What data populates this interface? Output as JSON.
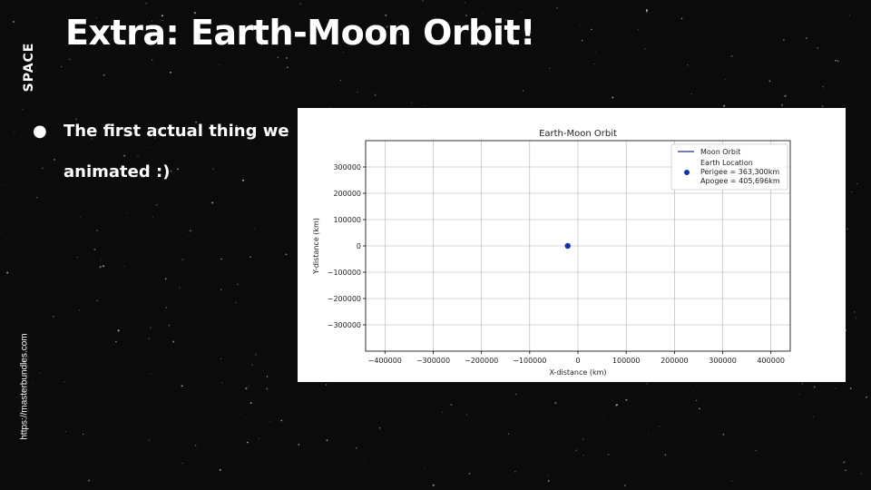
{
  "slide": {
    "title": "Extra: Earth-Moon Orbit!",
    "section_label": "SPACE",
    "source_url": "https://masterbundles.com",
    "bullets": [
      {
        "marker": "●",
        "text": "The first actual thing we animated :)"
      }
    ]
  },
  "chart_data": {
    "type": "scatter",
    "title": "Earth-Moon Orbit",
    "xlabel": "X-distance (km)",
    "ylabel": "Y-distance (km)",
    "xlim": [
      -440000,
      440000
    ],
    "ylim": [
      -400000,
      400000
    ],
    "xticks": [
      -400000,
      -300000,
      -200000,
      -100000,
      0,
      100000,
      200000,
      300000,
      400000
    ],
    "yticks": [
      -300000,
      -200000,
      -100000,
      0,
      100000,
      200000,
      300000
    ],
    "grid": true,
    "legend_position": "top-right",
    "series": [
      {
        "name": "Moon Orbit",
        "kind": "line",
        "color": "#1f2f8c",
        "points": []
      },
      {
        "name": "Earth Location",
        "kind": "point",
        "color": "#1133aa",
        "points": [
          {
            "x": -21200,
            "y": 0
          }
        ]
      }
    ],
    "annotations": [
      "Perigee = 363,300km",
      "Apogee = 405,696km"
    ]
  }
}
